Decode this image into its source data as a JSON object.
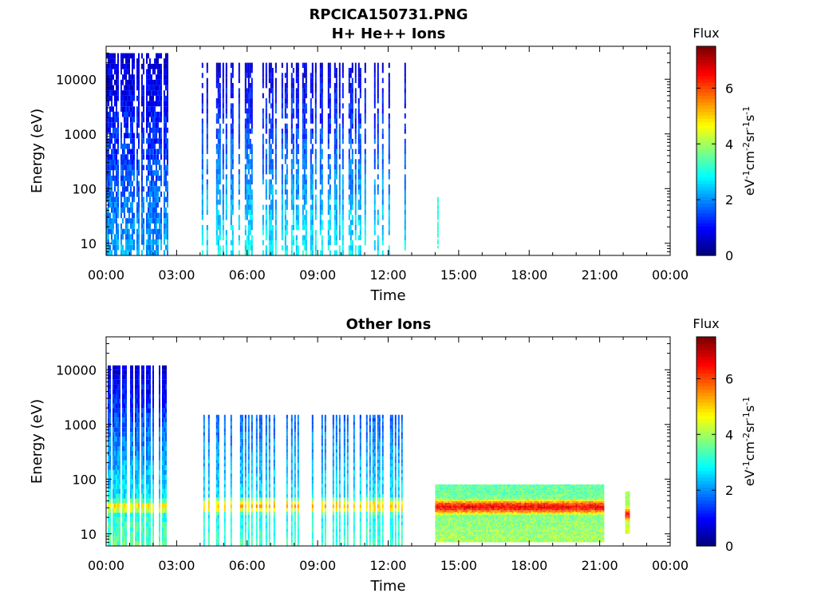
{
  "figure": {
    "filename": "RPCICA150731.PNG"
  },
  "chart_data": [
    {
      "type": "heatmap",
      "title": "H+ He++ Ions",
      "xlabel": "Time",
      "ylabel": "Energy (eV)",
      "xlim": [
        "00:00",
        "24:00"
      ],
      "x_ticks": [
        "00:00",
        "03:00",
        "06:00",
        "09:00",
        "12:00",
        "15:00",
        "18:00",
        "21:00",
        "00:00"
      ],
      "yscale": "log",
      "ylim": [
        6,
        40000
      ],
      "y_ticks": [
        "10",
        "100",
        "1000",
        "10000"
      ],
      "colorbar": {
        "label": "Flux",
        "unit": "eV-1cm-2sr-1s-1",
        "range": [
          0,
          7.5
        ],
        "ticks": [
          "0",
          "2",
          "4",
          "6"
        ],
        "colormap": "jet"
      },
      "grid": false,
      "data_blocks": [
        {
          "start": "00:00",
          "end": "02:35",
          "emin": 6,
          "emax": 30000,
          "low_flux": 2.2,
          "high_flux": 0.5,
          "density": 0.85
        },
        {
          "start": "04:00",
          "end": "12:45",
          "emin": 6,
          "emax": 20000,
          "low_flux": 2.8,
          "high_flux": 0.6,
          "density": 0.35
        },
        {
          "start": "14:05",
          "end": "14:08",
          "emin": 8,
          "emax": 70,
          "low_flux": 3.3,
          "high_flux": 3.0,
          "density": 0.9
        }
      ]
    },
    {
      "type": "heatmap",
      "title": "Other Ions",
      "xlabel": "Time",
      "ylabel": "Energy (eV)",
      "xlim": [
        "00:00",
        "24:00"
      ],
      "x_ticks": [
        "00:00",
        "03:00",
        "06:00",
        "09:00",
        "12:00",
        "15:00",
        "18:00",
        "21:00",
        "00:00"
      ],
      "yscale": "log",
      "ylim": [
        6,
        40000
      ],
      "y_ticks": [
        "10",
        "100",
        "1000",
        "10000"
      ],
      "colorbar": {
        "label": "Flux",
        "unit": "eV-1cm-2sr-1s-1",
        "range": [
          0,
          7.5
        ],
        "ticks": [
          "0",
          "2",
          "4",
          "6"
        ],
        "colormap": "jet"
      },
      "grid": false,
      "data_blocks": [
        {
          "start": "00:00",
          "end": "02:35",
          "emin": 6,
          "emax": 12000,
          "low_flux": 3.5,
          "high_flux": 0.6,
          "band_center": 28,
          "band_flux": 4.8,
          "density": 0.6
        },
        {
          "start": "04:00",
          "end": "12:45",
          "emin": 6,
          "emax": 1500,
          "low_flux": 3.2,
          "high_flux": 1.6,
          "band_center": 30,
          "band_flux": 5.2,
          "density": 0.35
        },
        {
          "start": "14:00",
          "end": "21:10",
          "emin": 7,
          "emax": 80,
          "low_flux": 4.0,
          "high_flux": 3.5,
          "band_center": 30,
          "band_flux": 6.6,
          "density": 1.0
        },
        {
          "start": "22:05",
          "end": "22:15",
          "emin": 10,
          "emax": 60,
          "low_flux": 4.5,
          "high_flux": 4.0,
          "band_center": 22,
          "band_flux": 6.4,
          "density": 1.0
        }
      ]
    }
  ]
}
